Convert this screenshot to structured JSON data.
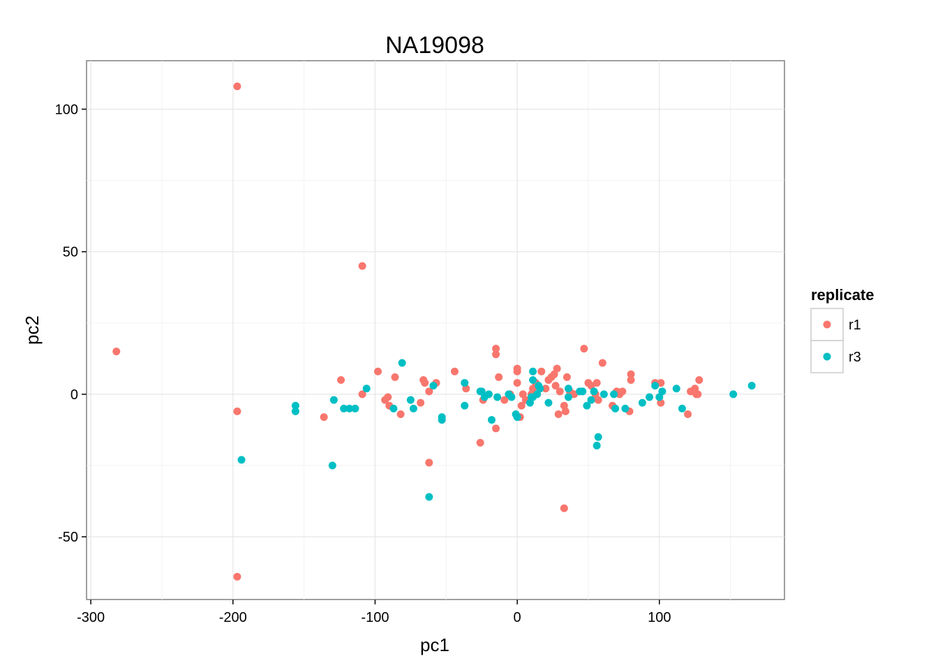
{
  "chart_data": {
    "type": "scatter",
    "title": "NA19098",
    "xlabel": "pc1",
    "ylabel": "pc2",
    "xlim": [
      -303,
      188
    ],
    "ylim": [
      -72,
      117
    ],
    "xticks": [
      -300,
      -200,
      -100,
      0,
      100
    ],
    "yticks": [
      -50,
      0,
      50,
      100
    ],
    "grid": true,
    "legend": {
      "title": "replicate",
      "position": "right"
    },
    "series": [
      {
        "name": "r1",
        "color": "#f8766d",
        "points": [
          [
            -282,
            15
          ],
          [
            -197,
            108
          ],
          [
            -197,
            -64
          ],
          [
            -197,
            -6
          ],
          [
            -109,
            45
          ],
          [
            -136,
            -8
          ],
          [
            -124,
            5
          ],
          [
            -109,
            0
          ],
          [
            -98,
            8
          ],
          [
            -93,
            -2
          ],
          [
            -91,
            -1
          ],
          [
            -90,
            -4
          ],
          [
            -86,
            6
          ],
          [
            -82,
            -7
          ],
          [
            -68,
            -3
          ],
          [
            -66,
            5
          ],
          [
            -65,
            4
          ],
          [
            -62,
            1
          ],
          [
            -62,
            -24
          ],
          [
            -57,
            4
          ],
          [
            -44,
            8
          ],
          [
            -36,
            2
          ],
          [
            -26,
            -17
          ],
          [
            -24,
            -2
          ],
          [
            -15,
            16
          ],
          [
            -15,
            14
          ],
          [
            -15,
            -12
          ],
          [
            -13,
            6
          ],
          [
            -9,
            -2
          ],
          [
            -5,
            0
          ],
          [
            0,
            9
          ],
          [
            0,
            8
          ],
          [
            0,
            4
          ],
          [
            2,
            -8
          ],
          [
            3,
            -4
          ],
          [
            4,
            0
          ],
          [
            6,
            -2
          ],
          [
            10,
            0
          ],
          [
            11,
            2
          ],
          [
            13,
            4
          ],
          [
            17,
            8
          ],
          [
            20,
            2
          ],
          [
            22,
            5
          ],
          [
            24,
            6
          ],
          [
            26,
            7
          ],
          [
            27,
            3
          ],
          [
            28,
            9
          ],
          [
            29,
            -7
          ],
          [
            30,
            1
          ],
          [
            33,
            -4
          ],
          [
            33,
            -40
          ],
          [
            34,
            -6
          ],
          [
            35,
            6
          ],
          [
            37,
            1
          ],
          [
            40,
            0
          ],
          [
            47,
            16
          ],
          [
            50,
            4
          ],
          [
            52,
            3
          ],
          [
            55,
            0
          ],
          [
            56,
            4
          ],
          [
            57,
            -2
          ],
          [
            60,
            11
          ],
          [
            67,
            -4
          ],
          [
            70,
            1
          ],
          [
            72,
            0
          ],
          [
            74,
            1
          ],
          [
            79,
            -6
          ],
          [
            80,
            5
          ],
          [
            80,
            7
          ],
          [
            97,
            4
          ],
          [
            101,
            -3
          ],
          [
            101,
            4
          ],
          [
            120,
            -7
          ],
          [
            122,
            1
          ],
          [
            125,
            2
          ],
          [
            126,
            0
          ],
          [
            127,
            0
          ],
          [
            128,
            5
          ]
        ]
      },
      {
        "name": "r3",
        "color": "#00bfc4",
        "points": [
          [
            -194,
            -23
          ],
          [
            -156,
            -4
          ],
          [
            -156,
            -6
          ],
          [
            -129,
            -2
          ],
          [
            -130,
            -25
          ],
          [
            -122,
            -5
          ],
          [
            -118,
            -5
          ],
          [
            -114,
            -5
          ],
          [
            -106,
            2
          ],
          [
            -87,
            -5
          ],
          [
            -81,
            11
          ],
          [
            -75,
            -2
          ],
          [
            -73,
            -5
          ],
          [
            -59,
            3
          ],
          [
            -53,
            -9
          ],
          [
            -53,
            -8
          ],
          [
            -62,
            -36
          ],
          [
            -37,
            4
          ],
          [
            -37,
            -4
          ],
          [
            -26,
            1
          ],
          [
            -25,
            1
          ],
          [
            -23,
            -1
          ],
          [
            -20,
            0
          ],
          [
            -18,
            -9
          ],
          [
            -14,
            -1
          ],
          [
            -6,
            0
          ],
          [
            -4,
            -1
          ],
          [
            -1,
            -7
          ],
          [
            0,
            -8
          ],
          [
            9,
            -3
          ],
          [
            10,
            -1
          ],
          [
            11,
            8
          ],
          [
            11,
            5
          ],
          [
            11,
            -1
          ],
          [
            14,
            0
          ],
          [
            15,
            3
          ],
          [
            16,
            2
          ],
          [
            22,
            -3
          ],
          [
            36,
            -1
          ],
          [
            36,
            2
          ],
          [
            44,
            1
          ],
          [
            46,
            1
          ],
          [
            49,
            -4
          ],
          [
            52,
            -2
          ],
          [
            54,
            1
          ],
          [
            56,
            -18
          ],
          [
            57,
            -15
          ],
          [
            61,
            0
          ],
          [
            68,
            0
          ],
          [
            69,
            -5
          ],
          [
            76,
            -5
          ],
          [
            88,
            -3
          ],
          [
            93,
            -1
          ],
          [
            97,
            3
          ],
          [
            100,
            -1
          ],
          [
            102,
            1
          ],
          [
            112,
            2
          ],
          [
            116,
            -5
          ],
          [
            152,
            0
          ],
          [
            165,
            3
          ]
        ]
      }
    ]
  }
}
